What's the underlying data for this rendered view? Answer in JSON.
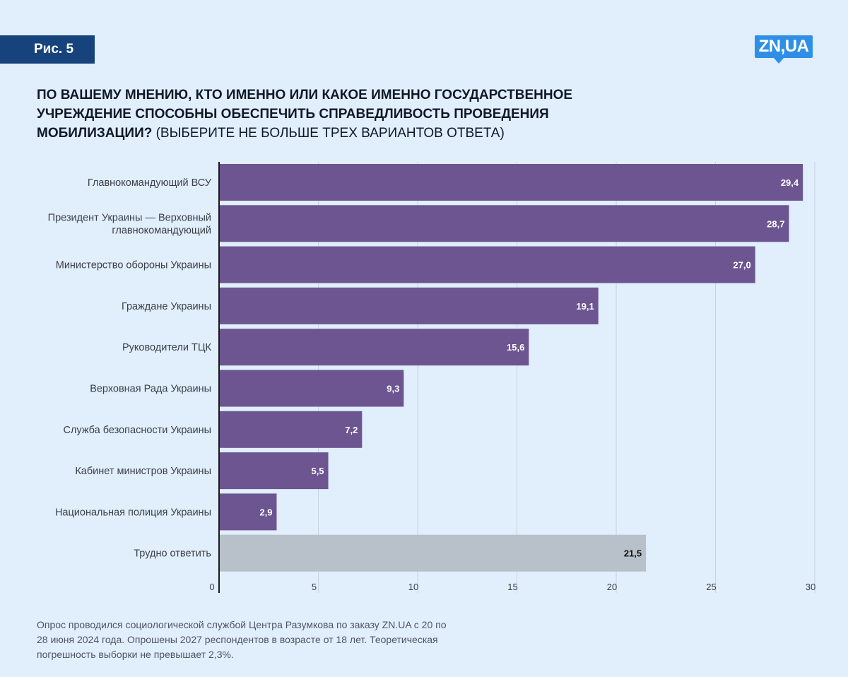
{
  "badge": {
    "label": "Рис. 5"
  },
  "logo": {
    "text": "ZN,UA"
  },
  "title": {
    "bold": "По вашему мнению, кто именно или какое именно государственное учреждение способны обеспечить справедливость проведения мобилизации?",
    "normal": "(выберите не больше трех вариантов ответа)"
  },
  "footnote": "Опрос проводился социологической службой Центра Разумкова по заказу ZN.UA с 20 по 28 июня 2024 года. Опрошены 2027 респондентов в возрасте от 18 лет. Теоретическая погрешность выборки не превышает 2,3%.",
  "colors": {
    "bar": "#6c5591",
    "bar_muted": "#b8c0c9",
    "grid": "#c8d3e0",
    "axis": "#1a1a1a",
    "label_on_dark": "#ffffff",
    "label_on_light": "#111111",
    "text": "#3a3f47"
  },
  "chart_data": {
    "type": "bar",
    "orientation": "horizontal",
    "categories": [
      "Главнокомандующий ВСУ",
      "Президент Украины — Верховный главнокомандующий",
      "Министерство обороны Украины",
      "Граждане Украины",
      "Руководители ТЦК",
      "Верховная Рада Украины",
      "Служба безопасности Украины",
      "Кабинет министров Украины",
      "Национальная полиция Украины",
      "Трудно ответить"
    ],
    "values": [
      29.4,
      28.7,
      27.0,
      19.1,
      15.6,
      9.3,
      7.2,
      5.5,
      2.9,
      21.5
    ],
    "value_labels": [
      "29,4",
      "28,7",
      "27,0",
      "19,1",
      "15,6",
      "9,3",
      "7,2",
      "5,5",
      "2,9",
      "21,5"
    ],
    "muted_categories": [
      "Трудно ответить"
    ],
    "xlim": [
      0,
      30
    ],
    "x_ticks": [
      0,
      5,
      10,
      15,
      20,
      25,
      30
    ],
    "grid": true,
    "title": "",
    "xlabel": "",
    "ylabel": ""
  }
}
